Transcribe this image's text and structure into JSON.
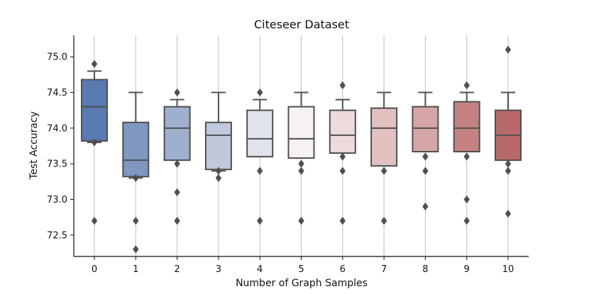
{
  "chart_data": {
    "type": "box",
    "title": "Citeseer Dataset",
    "xlabel": "Number of Graph Samples",
    "ylabel": "Test Accuracy",
    "categories": [
      "0",
      "1",
      "2",
      "3",
      "4",
      "5",
      "6",
      "7",
      "8",
      "9",
      "10"
    ],
    "ylim": [
      72.2,
      75.3
    ],
    "yticks": [
      "72.5",
      "73.0",
      "73.5",
      "74.0",
      "74.5",
      "75.0"
    ],
    "grid": "vertical",
    "boxes": [
      {
        "label": "0",
        "q1": 73.82,
        "median": 74.3,
        "q3": 74.68,
        "whisker_low": 73.8,
        "whisker_high": 74.8,
        "outliers": [
          74.9,
          73.8,
          72.7
        ],
        "color": "#5a7bb2"
      },
      {
        "label": "1",
        "q1": 73.32,
        "median": 73.55,
        "q3": 74.08,
        "whisker_low": 73.3,
        "whisker_high": 74.5,
        "outliers": [
          73.3,
          72.7,
          72.3
        ],
        "color": "#7f97c1"
      },
      {
        "label": "2",
        "q1": 73.55,
        "median": 74.0,
        "q3": 74.3,
        "whisker_low": 73.55,
        "whisker_high": 74.4,
        "outliers": [
          74.5,
          73.5,
          73.1,
          72.7
        ],
        "color": "#9fb0ce"
      },
      {
        "label": "3",
        "q1": 73.42,
        "median": 73.9,
        "q3": 74.08,
        "whisker_low": 73.4,
        "whisker_high": 74.5,
        "outliers": [
          73.4,
          73.3
        ],
        "color": "#c0c8dc"
      },
      {
        "label": "4",
        "q1": 73.6,
        "median": 73.85,
        "q3": 74.25,
        "whisker_low": 73.6,
        "whisker_high": 74.4,
        "outliers": [
          74.5,
          73.4,
          72.7
        ],
        "color": "#e1e3ec"
      },
      {
        "label": "5",
        "q1": 73.58,
        "median": 73.85,
        "q3": 74.3,
        "whisker_low": 73.58,
        "whisker_high": 74.5,
        "outliers": [
          73.5,
          73.4,
          72.7
        ],
        "color": "#f7f1f1"
      },
      {
        "label": "6",
        "q1": 73.65,
        "median": 73.9,
        "q3": 74.25,
        "whisker_low": 73.65,
        "whisker_high": 74.4,
        "outliers": [
          74.6,
          73.6,
          73.4,
          72.7
        ],
        "color": "#eddada"
      },
      {
        "label": "7",
        "q1": 73.47,
        "median": 74.0,
        "q3": 74.28,
        "whisker_low": 73.47,
        "whisker_high": 74.5,
        "outliers": [
          73.4,
          72.7
        ],
        "color": "#e0c0c0"
      },
      {
        "label": "8",
        "q1": 73.67,
        "median": 74.0,
        "q3": 74.3,
        "whisker_low": 73.67,
        "whisker_high": 74.5,
        "outliers": [
          73.6,
          73.4,
          72.9
        ],
        "color": "#d6a6a6"
      },
      {
        "label": "9",
        "q1": 73.67,
        "median": 74.0,
        "q3": 74.37,
        "whisker_low": 73.67,
        "whisker_high": 74.5,
        "outliers": [
          74.6,
          73.6,
          73.0,
          72.7
        ],
        "color": "#c58282"
      },
      {
        "label": "10",
        "q1": 73.55,
        "median": 73.9,
        "q3": 74.25,
        "whisker_low": 73.55,
        "whisker_high": 74.5,
        "outliers": [
          75.1,
          73.5,
          73.4,
          72.8
        ],
        "color": "#b86969"
      }
    ]
  }
}
